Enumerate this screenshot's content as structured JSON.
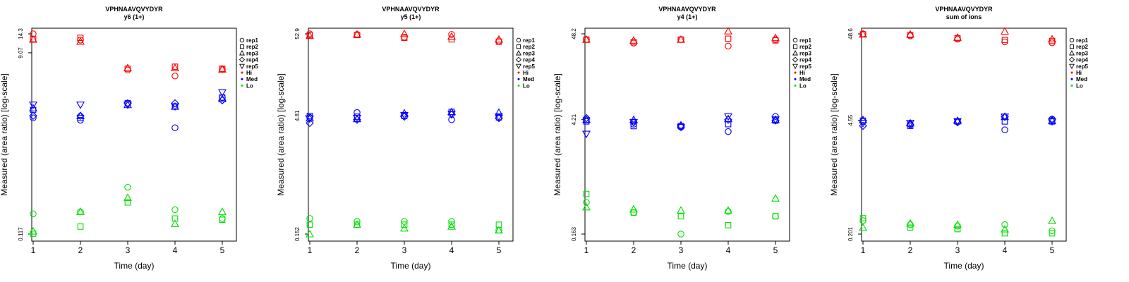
{
  "colors": {
    "Hi": "#ff0000",
    "Med": "#0000ff",
    "Lo": "#00e000",
    "axis": "#000000"
  },
  "legend": [
    {
      "label": "rep1",
      "marker": "circle"
    },
    {
      "label": "rep2",
      "marker": "square"
    },
    {
      "label": "rep3",
      "marker": "triangle-up"
    },
    {
      "label": "rep4",
      "marker": "diamond"
    },
    {
      "label": "rep5",
      "marker": "triangle-down"
    },
    {
      "label": "Hi",
      "marker": "dot",
      "group": "Hi"
    },
    {
      "label": "Med",
      "marker": "dot",
      "group": "Med"
    },
    {
      "label": "Lo",
      "marker": "dot",
      "group": "Lo"
    }
  ],
  "chart_data": [
    {
      "type": "scatter",
      "title": "VPHNAAVQVYDYR",
      "subtitle": "y6 (1+)",
      "xlabel": "Time (day)",
      "ylabel": "Measured (area ratio) [log-scale]",
      "x": [
        1,
        2,
        3,
        4,
        5
      ],
      "yscale": "log",
      "ylim": [
        0.117,
        14.3
      ],
      "yticks": [
        0.117,
        9.07,
        14.3
      ],
      "ytick_labels": [
        "0.117",
        "9.07",
        "14.3"
      ],
      "series": [
        {
          "name": "Hi rep1",
          "group": "Hi",
          "marker": "circle",
          "values": [
            14.3,
            12.3,
            6.0,
            5.2,
            6.1
          ]
        },
        {
          "name": "Hi rep2",
          "group": "Hi",
          "marker": "square",
          "values": [
            12.6,
            13.0,
            6.2,
            6.5,
            6.2
          ]
        },
        {
          "name": "Hi rep3",
          "group": "Hi",
          "marker": "triangle-up",
          "values": [
            12.5,
            11.9,
            6.3,
            6.3,
            6.1
          ]
        },
        {
          "name": "Med rep1",
          "group": "Med",
          "marker": "circle",
          "values": [
            1.9,
            1.8,
            2.7,
            1.5,
            3.1
          ]
        },
        {
          "name": "Med rep2",
          "group": "Med",
          "marker": "square",
          "values": [
            2.3,
            1.9,
            2.7,
            2.5,
            3.1
          ]
        },
        {
          "name": "Med rep3",
          "group": "Med",
          "marker": "triangle-up",
          "values": [
            2.4,
            2.0,
            2.6,
            2.5,
            3.0
          ]
        },
        {
          "name": "Med rep4",
          "group": "Med",
          "marker": "diamond",
          "values": [
            2.0,
            2.0,
            2.7,
            2.7,
            2.9
          ]
        },
        {
          "name": "Med rep5",
          "group": "Med",
          "marker": "triangle-down",
          "values": [
            2.6,
            2.6,
            2.6,
            2.5,
            3.5
          ]
        },
        {
          "name": "Lo rep1",
          "group": "Lo",
          "marker": "circle",
          "values": [
            0.19,
            0.2,
            0.36,
            0.21,
            0.17
          ]
        },
        {
          "name": "Lo rep2",
          "group": "Lo",
          "marker": "square",
          "values": [
            0.118,
            0.14,
            0.25,
            0.17,
            0.165
          ]
        },
        {
          "name": "Lo rep3",
          "group": "Lo",
          "marker": "triangle-up",
          "values": [
            0.125,
            0.2,
            0.28,
            0.15,
            0.2
          ]
        }
      ]
    },
    {
      "type": "scatter",
      "title": "VPHNAAVQVYDYR",
      "subtitle": "y5 (1+)",
      "xlabel": "Time (day)",
      "ylabel": "Measured (area ratio) [log-scale]",
      "x": [
        1,
        2,
        3,
        4,
        5
      ],
      "yscale": "log",
      "ylim": [
        0.152,
        52.9
      ],
      "yticks": [
        0.152,
        4.81,
        52.9
      ],
      "ytick_labels": [
        "0.152",
        "4.81",
        "52.9"
      ],
      "series": [
        {
          "name": "Hi rep1",
          "group": "Hi",
          "marker": "circle",
          "values": [
            52.9,
            52.0,
            48.0,
            52.0,
            43.0
          ]
        },
        {
          "name": "Hi rep2",
          "group": "Hi",
          "marker": "square",
          "values": [
            51.0,
            51.0,
            47.0,
            45.0,
            42.0
          ]
        },
        {
          "name": "Hi rep3",
          "group": "Hi",
          "marker": "triangle-up",
          "values": [
            50.0,
            52.0,
            53.0,
            49.0,
            45.0
          ]
        },
        {
          "name": "Med rep1",
          "group": "Med",
          "marker": "circle",
          "values": [
            4.6,
            5.3,
            4.8,
            4.3,
            4.6
          ]
        },
        {
          "name": "Med rep2",
          "group": "Med",
          "marker": "square",
          "values": [
            4.8,
            4.7,
            4.8,
            5.4,
            4.6
          ]
        },
        {
          "name": "Med rep3",
          "group": "Med",
          "marker": "triangle-up",
          "values": [
            4.5,
            4.4,
            5.2,
            5.4,
            5.3
          ]
        },
        {
          "name": "Med rep4",
          "group": "Med",
          "marker": "diamond",
          "values": [
            3.9,
            4.3,
            4.7,
            5.0,
            4.5
          ]
        },
        {
          "name": "Med rep5",
          "group": "Med",
          "marker": "triangle-down",
          "values": [
            4.4,
            4.5,
            4.9,
            5.1,
            4.7
          ]
        },
        {
          "name": "Lo rep1",
          "group": "Lo",
          "marker": "circle",
          "values": [
            0.24,
            0.22,
            0.22,
            0.22,
            0.17
          ]
        },
        {
          "name": "Lo rep2",
          "group": "Lo",
          "marker": "square",
          "values": [
            0.2,
            0.2,
            0.2,
            0.2,
            0.2
          ]
        },
        {
          "name": "Lo rep3",
          "group": "Lo",
          "marker": "triangle-up",
          "values": [
            0.152,
            0.2,
            0.18,
            0.19,
            0.17
          ]
        }
      ]
    },
    {
      "type": "scatter",
      "title": "VPHNAAVQVYDYR",
      "subtitle": "y4 (1+)",
      "xlabel": "Time (day)",
      "ylabel": "Measured (area ratio) [log-scale]",
      "x": [
        1,
        2,
        3,
        4,
        5
      ],
      "yscale": "log",
      "ylim": [
        0.163,
        48.2
      ],
      "yticks": [
        0.163,
        4.21,
        48.2
      ],
      "ytick_labels": [
        "0.163",
        "4.21",
        "48.2"
      ],
      "series": [
        {
          "name": "Hi rep1",
          "group": "Hi",
          "marker": "circle",
          "values": [
            41.0,
            37.0,
            41.0,
            34.0,
            41.0
          ]
        },
        {
          "name": "Hi rep2",
          "group": "Hi",
          "marker": "square",
          "values": [
            41.0,
            38.0,
            41.0,
            42.0,
            40.0
          ]
        },
        {
          "name": "Hi rep3",
          "group": "Hi",
          "marker": "triangle-up",
          "values": [
            41.0,
            40.0,
            41.0,
            52.0,
            43.0
          ]
        },
        {
          "name": "Med rep1",
          "group": "Med",
          "marker": "circle",
          "values": [
            4.2,
            3.7,
            3.4,
            3.0,
            4.6
          ]
        },
        {
          "name": "Med rep2",
          "group": "Med",
          "marker": "square",
          "values": [
            4.0,
            3.5,
            3.5,
            3.7,
            4.1
          ]
        },
        {
          "name": "Med rep3",
          "group": "Med",
          "marker": "triangle-up",
          "values": [
            4.2,
            4.2,
            3.6,
            4.3,
            4.2
          ]
        },
        {
          "name": "Med rep4",
          "group": "Med",
          "marker": "diamond",
          "values": [
            4.4,
            3.9,
            3.5,
            4.2,
            4.1
          ]
        },
        {
          "name": "Med rep5",
          "group": "Med",
          "marker": "triangle-down",
          "values": [
            2.8,
            3.9,
            3.4,
            4.6,
            4.2
          ]
        },
        {
          "name": "Lo rep1",
          "group": "Lo",
          "marker": "circle",
          "values": [
            0.4,
            0.3,
            0.163,
            0.31,
            0.27
          ]
        },
        {
          "name": "Lo rep2",
          "group": "Lo",
          "marker": "square",
          "values": [
            0.51,
            0.3,
            0.27,
            0.21,
            0.27
          ]
        },
        {
          "name": "Lo rep3",
          "group": "Lo",
          "marker": "triangle-up",
          "values": [
            0.35,
            0.33,
            0.32,
            0.32,
            0.45
          ]
        }
      ]
    },
    {
      "type": "scatter",
      "title": "VPHNAAVQVYDYR",
      "subtitle": "sum of ions",
      "xlabel": "Time (day)",
      "ylabel": "Measured (area ratio) [log-scale]",
      "x": [
        1,
        2,
        3,
        4,
        5
      ],
      "yscale": "log",
      "ylim": [
        0.201,
        48.6
      ],
      "yticks": [
        0.201,
        4.55,
        48.6
      ],
      "ytick_labels": [
        "0.201",
        "4.55",
        "48.6"
      ],
      "series": [
        {
          "name": "Hi rep1",
          "group": "Hi",
          "marker": "circle",
          "values": [
            48.6,
            46.0,
            42.0,
            39.0,
            38.0
          ]
        },
        {
          "name": "Hi rep2",
          "group": "Hi",
          "marker": "square",
          "values": [
            48.0,
            47.0,
            43.0,
            41.0,
            40.0
          ]
        },
        {
          "name": "Hi rep3",
          "group": "Hi",
          "marker": "triangle-up",
          "values": [
            48.0,
            48.0,
            44.0,
            52.0,
            42.0
          ]
        },
        {
          "name": "Med rep1",
          "group": "Med",
          "marker": "circle",
          "values": [
            4.4,
            4.1,
            4.4,
            3.5,
            4.7
          ]
        },
        {
          "name": "Med rep2",
          "group": "Med",
          "marker": "square",
          "values": [
            4.5,
            3.9,
            4.4,
            4.4,
            4.4
          ]
        },
        {
          "name": "Med rep3",
          "group": "Med",
          "marker": "triangle-up",
          "values": [
            4.6,
            4.2,
            4.5,
            5.0,
            4.5
          ]
        },
        {
          "name": "Med rep4",
          "group": "Med",
          "marker": "diamond",
          "values": [
            3.9,
            4.0,
            4.3,
            5.0,
            4.6
          ]
        },
        {
          "name": "Med rep5",
          "group": "Med",
          "marker": "triangle-down",
          "values": [
            4.2,
            4.2,
            4.4,
            5.0,
            4.4
          ]
        },
        {
          "name": "Lo rep1",
          "group": "Lo",
          "marker": "circle",
          "values": [
            0.29,
            0.26,
            0.25,
            0.26,
            0.22
          ]
        },
        {
          "name": "Lo rep2",
          "group": "Lo",
          "marker": "square",
          "values": [
            0.31,
            0.24,
            0.23,
            0.205,
            0.205
          ]
        },
        {
          "name": "Lo rep3",
          "group": "Lo",
          "marker": "triangle-up",
          "values": [
            0.24,
            0.27,
            0.26,
            0.23,
            0.29
          ]
        }
      ]
    }
  ]
}
